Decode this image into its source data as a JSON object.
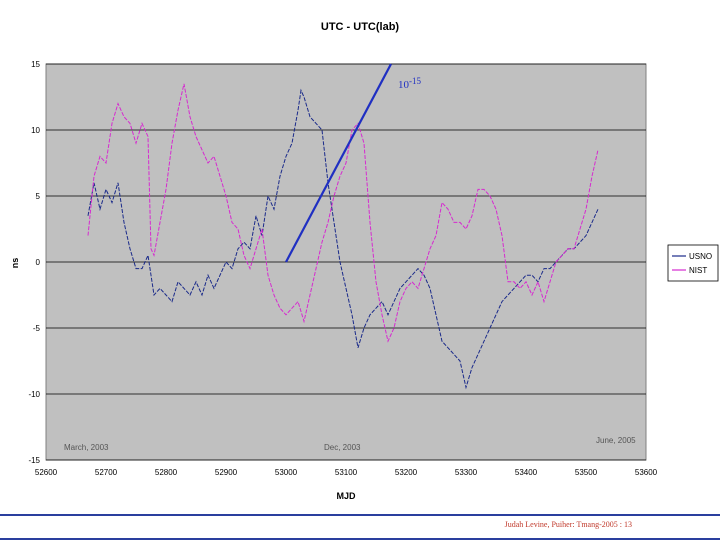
{
  "chart_data": {
    "type": "line",
    "title": "UTC - UTC(lab)",
    "xlabel": "MJD",
    "ylabel": "ns",
    "xlim": [
      52600,
      53600
    ],
    "ylim": [
      -15,
      15
    ],
    "xticks": [
      52600,
      52700,
      52800,
      52900,
      53000,
      53100,
      53200,
      53300,
      53400,
      53500,
      53600
    ],
    "yticks": [
      15,
      10,
      5,
      0,
      -5,
      -10,
      -15
    ],
    "grid": true,
    "legend_position": "right",
    "annotations": {
      "start": "March, 2003",
      "mid": "Dec, 2003",
      "end": "June, 2005",
      "slope_base": "10",
      "slope_exp": "-15"
    },
    "slope_line": {
      "x": [
        53000,
        53175
      ],
      "y": [
        0,
        15
      ],
      "color": "#1f2fc2"
    },
    "series": [
      {
        "name": "USNO",
        "color": "#1a2a8a",
        "x": [
          52670,
          52680,
          52690,
          52700,
          52710,
          52720,
          52730,
          52740,
          52750,
          52760,
          52770,
          52780,
          52790,
          52800,
          52810,
          52820,
          52830,
          52840,
          52850,
          52860,
          52870,
          52880,
          52890,
          52900,
          52910,
          52920,
          52930,
          52940,
          52950,
          52960,
          52970,
          52980,
          52990,
          53000,
          53010,
          53020,
          53025,
          53030,
          53040,
          53050,
          53060,
          53070,
          53080,
          53090,
          53100,
          53110,
          53120,
          53130,
          53140,
          53150,
          53160,
          53170,
          53180,
          53190,
          53200,
          53210,
          53220,
          53230,
          53240,
          53250,
          53260,
          53270,
          53280,
          53290,
          53300,
          53310,
          53320,
          53330,
          53340,
          53350,
          53360,
          53370,
          53380,
          53390,
          53400,
          53410,
          53420,
          53430,
          53440,
          53450,
          53460,
          53470,
          53480,
          53490,
          53500,
          53510,
          53520
        ],
        "values": [
          3.5,
          6.0,
          4.0,
          5.5,
          4.5,
          6.0,
          3.0,
          1.0,
          -0.5,
          -0.5,
          0.5,
          -2.5,
          -2.0,
          -2.5,
          -3.0,
          -1.5,
          -2.0,
          -2.5,
          -1.5,
          -2.5,
          -1.0,
          -2.0,
          -1.0,
          0.0,
          -0.5,
          1.0,
          1.5,
          1.0,
          3.5,
          2.0,
          5.0,
          4.0,
          6.5,
          8.0,
          9.0,
          11.5,
          13.0,
          12.5,
          11.0,
          10.5,
          10.0,
          6.0,
          3.0,
          0.0,
          -2.0,
          -4.0,
          -6.5,
          -5.0,
          -4.0,
          -3.5,
          -3.0,
          -4.0,
          -3.0,
          -2.0,
          -1.5,
          -1.0,
          -0.5,
          -1.0,
          -2.0,
          -4.0,
          -6.0,
          -6.5,
          -7.0,
          -7.5,
          -9.5,
          -8.0,
          -7.0,
          -6.0,
          -5.0,
          -4.0,
          -3.0,
          -2.5,
          -2.0,
          -1.5,
          -1.0,
          -1.0,
          -1.5,
          -0.5,
          -0.5,
          0.0,
          0.5,
          1.0,
          1.0,
          1.5,
          2.0,
          3.0,
          4.0
        ]
      },
      {
        "name": "NIST",
        "color": "#d62ad0",
        "x": [
          52670,
          52680,
          52690,
          52700,
          52710,
          52720,
          52730,
          52740,
          52750,
          52760,
          52770,
          52775,
          52780,
          52790,
          52800,
          52810,
          52820,
          52830,
          52840,
          52850,
          52860,
          52870,
          52880,
          52890,
          52900,
          52910,
          52920,
          52930,
          52940,
          52950,
          52960,
          52970,
          52980,
          52990,
          53000,
          53010,
          53020,
          53030,
          53040,
          53050,
          53060,
          53070,
          53080,
          53090,
          53100,
          53110,
          53120,
          53130,
          53140,
          53150,
          53160,
          53170,
          53180,
          53190,
          53200,
          53210,
          53220,
          53230,
          53240,
          53250,
          53260,
          53270,
          53280,
          53290,
          53300,
          53310,
          53320,
          53330,
          53340,
          53350,
          53360,
          53370,
          53380,
          53390,
          53400,
          53410,
          53420,
          53430,
          53440,
          53450,
          53460,
          53470,
          53480,
          53490,
          53500,
          53510,
          53520
        ],
        "values": [
          2.0,
          6.5,
          8.0,
          7.5,
          10.5,
          12.0,
          11.0,
          10.5,
          9.0,
          10.5,
          9.5,
          1.0,
          0.5,
          3.0,
          5.5,
          9.0,
          11.5,
          13.5,
          11.0,
          9.5,
          8.5,
          7.5,
          8.0,
          6.5,
          5.0,
          3.0,
          2.5,
          0.5,
          -0.5,
          1.0,
          2.5,
          -1.0,
          -2.5,
          -3.5,
          -4.0,
          -3.5,
          -3.0,
          -4.5,
          -2.5,
          -0.5,
          1.5,
          3.0,
          5.0,
          6.5,
          7.5,
          10.0,
          10.5,
          9.0,
          3.0,
          -1.5,
          -4.0,
          -6.0,
          -5.0,
          -3.0,
          -2.0,
          -1.5,
          -2.0,
          -0.5,
          1.0,
          2.0,
          4.5,
          4.0,
          3.0,
          3.0,
          2.5,
          3.5,
          5.5,
          5.5,
          5.0,
          4.0,
          2.0,
          -1.5,
          -1.5,
          -2.0,
          -1.5,
          -2.5,
          -1.5,
          -3.0,
          -1.5,
          0.0,
          0.5,
          1.0,
          1.0,
          2.5,
          4.0,
          6.5,
          8.5
        ]
      }
    ]
  },
  "footer": {
    "text": "Judah Levine, Puiher: Tmang-2005 : 13"
  }
}
